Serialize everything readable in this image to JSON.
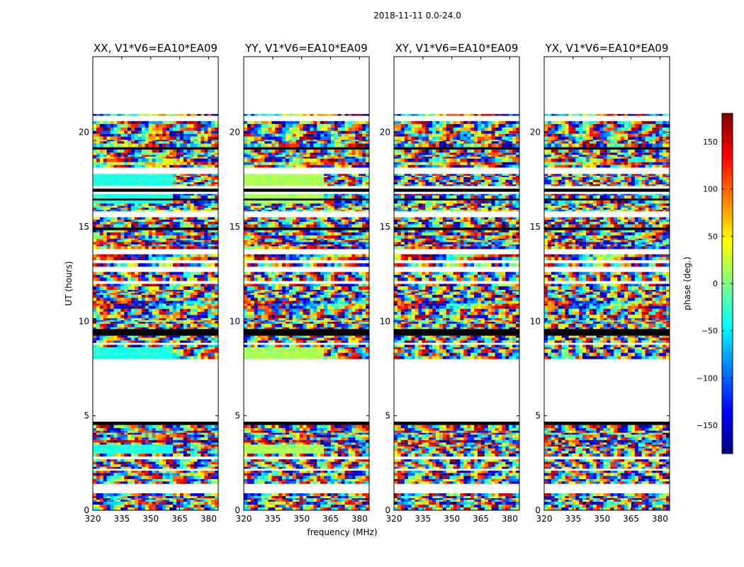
{
  "suptitle": "2018-11-11 0.0-24.0",
  "chart_data": {
    "type": "heatmap",
    "xlabel": "frequency (MHz)",
    "ylabel": "UT (hours)",
    "xlim": [
      320,
      385
    ],
    "ylim": [
      0,
      24
    ],
    "xticks": [
      320,
      335,
      350,
      365,
      380
    ],
    "yticks": [
      0,
      5,
      10,
      15,
      20
    ],
    "colorbar": {
      "label": "phase (deg.)",
      "range": [
        -180,
        180
      ],
      "ticks": [
        -150,
        -100,
        -50,
        0,
        50,
        100,
        150
      ],
      "tick_labels": [
        "−150",
        "−100",
        "−50",
        "0",
        "50",
        "100",
        "150"
      ],
      "colormap": [
        "#00007f",
        "#0000ff",
        "#007fff",
        "#00ffff",
        "#7fff7f",
        "#ffff00",
        "#ff7f00",
        "#ff0000",
        "#7f0000"
      ]
    },
    "data_hours": [
      [
        0.0,
        0.9
      ],
      [
        1.4,
        4.7
      ],
      [
        8.0,
        21.0
      ]
    ],
    "panels": [
      {
        "title": "XX, V1*V6=EA10*EA09",
        "pol": "XX"
      },
      {
        "title": "YY, V1*V6=EA10*EA09",
        "pol": "YY"
      },
      {
        "title": "XY, V1*V6=EA10*EA09",
        "pol": "XY"
      },
      {
        "title": "YX, V1*V6=EA10*EA09",
        "pol": "YX"
      }
    ]
  }
}
